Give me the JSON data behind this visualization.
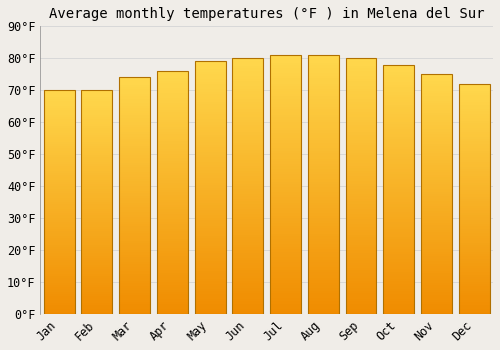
{
  "title": "Average monthly temperatures (°F ) in Melena del Sur",
  "months": [
    "Jan",
    "Feb",
    "Mar",
    "Apr",
    "May",
    "Jun",
    "Jul",
    "Aug",
    "Sep",
    "Oct",
    "Nov",
    "Dec"
  ],
  "values": [
    70,
    70,
    74,
    76,
    79,
    80,
    81,
    81,
    80,
    78,
    75,
    72
  ],
  "bar_top_color": "#FFD84D",
  "bar_bottom_color": "#F08C00",
  "bar_edge_color": "#B07000",
  "background_color": "#F0EDE8",
  "ylim": [
    0,
    90
  ],
  "yticks": [
    0,
    10,
    20,
    30,
    40,
    50,
    60,
    70,
    80,
    90
  ],
  "title_fontsize": 10,
  "tick_fontsize": 8.5,
  "grid_color": "#D8D8D8",
  "bar_width": 0.82
}
